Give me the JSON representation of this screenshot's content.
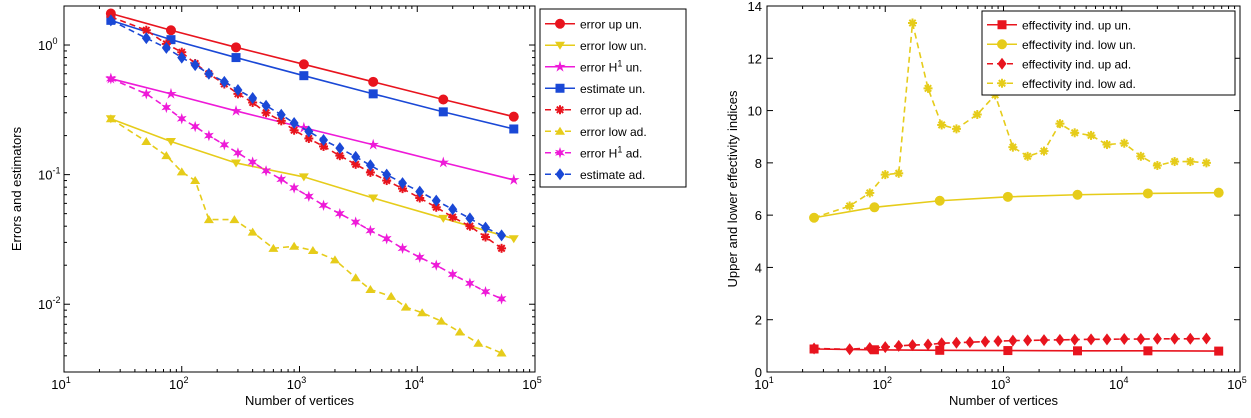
{
  "chart_data": [
    {
      "type": "line",
      "xscale": "log",
      "yscale": "log",
      "xlabel": "Number of vertices",
      "ylabel": "Errors and estimators",
      "xlim": [
        10,
        100000
      ],
      "ylim": [
        0.003,
        2
      ],
      "x_major_ticks": [
        {
          "base": "10",
          "exp": "1",
          "value": 10
        },
        {
          "base": "10",
          "exp": "2",
          "value": 100
        },
        {
          "base": "10",
          "exp": "3",
          "value": 1000
        },
        {
          "base": "10",
          "exp": "4",
          "value": 10000
        },
        {
          "base": "10",
          "exp": "5",
          "value": 100000
        }
      ],
      "y_major_ticks": [
        {
          "base": "10",
          "exp": "0",
          "value": 1
        },
        {
          "base": "10",
          "exp": "-1",
          "value": 0.1
        },
        {
          "base": "10",
          "exp": "-2",
          "value": 0.01
        }
      ],
      "legend_position": "top-right",
      "series": [
        {
          "name": "error up un.",
          "color": "#e8141e",
          "marker": "circle",
          "dash": "solid",
          "points": [
            [
              25,
              1.75
            ],
            [
              81,
              1.3
            ],
            [
              289,
              0.96
            ],
            [
              1089,
              0.71
            ],
            [
              4225,
              0.52
            ],
            [
              16641,
              0.38
            ],
            [
              66049,
              0.28
            ]
          ]
        },
        {
          "name": "error low un.",
          "color": "#e6cc1a",
          "marker": "triangle-down",
          "dash": "solid",
          "points": [
            [
              25,
              0.27
            ],
            [
              81,
              0.18
            ],
            [
              289,
              0.123
            ],
            [
              1089,
              0.096
            ],
            [
              4225,
              0.066
            ],
            [
              16641,
              0.046
            ],
            [
              66049,
              0.032
            ]
          ]
        },
        {
          "name": "error H",
          "name_sup": "1",
          "name_suffix": " un.",
          "color": "#ee1ad8",
          "marker": "star",
          "dash": "solid",
          "points": [
            [
              25,
              0.55
            ],
            [
              81,
              0.42
            ],
            [
              289,
              0.31
            ],
            [
              1089,
              0.23
            ],
            [
              4225,
              0.17
            ],
            [
              16641,
              0.124
            ],
            [
              66049,
              0.091
            ]
          ]
        },
        {
          "name": "estimate un.",
          "color": "#1a48d6",
          "marker": "square",
          "dash": "solid",
          "points": [
            [
              25,
              1.55
            ],
            [
              81,
              1.1
            ],
            [
              289,
              0.8
            ],
            [
              1089,
              0.58
            ],
            [
              4225,
              0.42
            ],
            [
              16641,
              0.305
            ],
            [
              66049,
              0.225
            ]
          ]
        },
        {
          "name": "error up ad.",
          "color": "#e8141e",
          "marker": "asterisk",
          "dash": "dashed",
          "points": [
            [
              25,
              1.65
            ],
            [
              50,
              1.3
            ],
            [
              74,
              1.02
            ],
            [
              100,
              0.88
            ],
            [
              130,
              0.72
            ],
            [
              170,
              0.6
            ],
            [
              230,
              0.5
            ],
            [
              300,
              0.42
            ],
            [
              400,
              0.36
            ],
            [
              520,
              0.3
            ],
            [
              700,
              0.26
            ],
            [
              900,
              0.22
            ],
            [
              1200,
              0.19
            ],
            [
              1600,
              0.165
            ],
            [
              2200,
              0.14
            ],
            [
              3000,
              0.12
            ],
            [
              4000,
              0.104
            ],
            [
              5500,
              0.09
            ],
            [
              7500,
              0.078
            ],
            [
              10500,
              0.066
            ],
            [
              14500,
              0.056
            ],
            [
              20000,
              0.047
            ],
            [
              28000,
              0.04
            ],
            [
              38000,
              0.033
            ],
            [
              52000,
              0.027
            ]
          ]
        },
        {
          "name": "error low ad.",
          "color": "#e6cc1a",
          "marker": "triangle-up",
          "dash": "dashed",
          "points": [
            [
              25,
              0.27
            ],
            [
              50,
              0.18
            ],
            [
              74,
              0.14
            ],
            [
              100,
              0.105
            ],
            [
              130,
              0.09
            ],
            [
              170,
              0.045
            ],
            [
              280,
              0.045
            ],
            [
              400,
              0.036
            ],
            [
              600,
              0.027
            ],
            [
              900,
              0.028
            ],
            [
              1300,
              0.026
            ],
            [
              2000,
              0.022
            ],
            [
              3000,
              0.016
            ],
            [
              4000,
              0.013
            ],
            [
              6000,
              0.0115
            ],
            [
              8000,
              0.0095
            ],
            [
              11000,
              0.0086
            ],
            [
              16000,
              0.0074
            ],
            [
              23000,
              0.0061
            ],
            [
              33000,
              0.005
            ],
            [
              52000,
              0.0042
            ]
          ]
        },
        {
          "name": "error H",
          "name_sup": "1",
          "name_suffix": " ad.",
          "color": "#ee1ad8",
          "marker": "star6",
          "dash": "dashed",
          "points": [
            [
              25,
              0.55
            ],
            [
              50,
              0.42
            ],
            [
              74,
              0.33
            ],
            [
              100,
              0.27
            ],
            [
              130,
              0.235
            ],
            [
              170,
              0.2
            ],
            [
              230,
              0.17
            ],
            [
              300,
              0.147
            ],
            [
              400,
              0.125
            ],
            [
              520,
              0.107
            ],
            [
              700,
              0.092
            ],
            [
              900,
              0.079
            ],
            [
              1200,
              0.068
            ],
            [
              1600,
              0.058
            ],
            [
              2200,
              0.05
            ],
            [
              3000,
              0.043
            ],
            [
              4000,
              0.037
            ],
            [
              5500,
              0.032
            ],
            [
              7500,
              0.027
            ],
            [
              10500,
              0.023
            ],
            [
              14500,
              0.02
            ],
            [
              20000,
              0.017
            ],
            [
              28000,
              0.0145
            ],
            [
              38000,
              0.0125
            ],
            [
              52000,
              0.011
            ]
          ]
        },
        {
          "name": "estimate ad.",
          "color": "#1a48d6",
          "marker": "diamond",
          "dash": "dashed",
          "points": [
            [
              25,
              1.55
            ],
            [
              50,
              1.13
            ],
            [
              74,
              0.95
            ],
            [
              100,
              0.8
            ],
            [
              130,
              0.7
            ],
            [
              170,
              0.6
            ],
            [
              230,
              0.52
            ],
            [
              300,
              0.45
            ],
            [
              400,
              0.39
            ],
            [
              520,
              0.34
            ],
            [
              700,
              0.29
            ],
            [
              900,
              0.25
            ],
            [
              1200,
              0.215
            ],
            [
              1600,
              0.185
            ],
            [
              2200,
              0.16
            ],
            [
              3000,
              0.137
            ],
            [
              4000,
              0.118
            ],
            [
              5500,
              0.1
            ],
            [
              7500,
              0.086
            ],
            [
              10500,
              0.074
            ],
            [
              14500,
              0.063
            ],
            [
              20000,
              0.054
            ],
            [
              28000,
              0.046
            ],
            [
              38000,
              0.039
            ],
            [
              52000,
              0.034
            ]
          ]
        }
      ]
    },
    {
      "type": "line",
      "xscale": "log",
      "yscale": "linear",
      "xlabel": "Number of vertices",
      "ylabel": "Upper and lower effectivity indices",
      "xlim": [
        10,
        100000
      ],
      "ylim": [
        0,
        14
      ],
      "x_major_ticks": [
        {
          "base": "10",
          "exp": "1",
          "value": 10
        },
        {
          "base": "10",
          "exp": "2",
          "value": 100
        },
        {
          "base": "10",
          "exp": "3",
          "value": 1000
        },
        {
          "base": "10",
          "exp": "4",
          "value": 10000
        },
        {
          "base": "10",
          "exp": "5",
          "value": 100000
        }
      ],
      "y_major_ticks": [
        {
          "label": "0",
          "value": 0
        },
        {
          "label": "2",
          "value": 2
        },
        {
          "label": "4",
          "value": 4
        },
        {
          "label": "6",
          "value": 6
        },
        {
          "label": "8",
          "value": 8
        },
        {
          "label": "10",
          "value": 10
        },
        {
          "label": "12",
          "value": 12
        },
        {
          "label": "14",
          "value": 14
        }
      ],
      "legend_position": "top-right",
      "series": [
        {
          "name": "effectivity ind. up un.",
          "color": "#e8141e",
          "marker": "square",
          "dash": "solid",
          "points": [
            [
              25,
              0.88
            ],
            [
              81,
              0.85
            ],
            [
              289,
              0.83
            ],
            [
              1089,
              0.82
            ],
            [
              4225,
              0.81
            ],
            [
              16641,
              0.81
            ],
            [
              66049,
              0.8
            ]
          ]
        },
        {
          "name": "effectivity ind. low un.",
          "color": "#e6cc1a",
          "marker": "circle",
          "dash": "solid",
          "points": [
            [
              25,
              5.9
            ],
            [
              81,
              6.3
            ],
            [
              289,
              6.55
            ],
            [
              1089,
              6.7
            ],
            [
              4225,
              6.78
            ],
            [
              16641,
              6.83
            ],
            [
              66049,
              6.86
            ]
          ]
        },
        {
          "name": "effectivity ind. up ad.",
          "color": "#e8141e",
          "marker": "diamond",
          "dash": "dashed",
          "points": [
            [
              25,
              0.9
            ],
            [
              50,
              0.87
            ],
            [
              74,
              0.92
            ],
            [
              100,
              0.95
            ],
            [
              130,
              1.0
            ],
            [
              170,
              1.03
            ],
            [
              230,
              1.05
            ],
            [
              300,
              1.1
            ],
            [
              400,
              1.12
            ],
            [
              520,
              1.14
            ],
            [
              700,
              1.16
            ],
            [
              900,
              1.18
            ],
            [
              1200,
              1.2
            ],
            [
              1600,
              1.21
            ],
            [
              2200,
              1.22
            ],
            [
              3000,
              1.23
            ],
            [
              4000,
              1.24
            ],
            [
              5500,
              1.25
            ],
            [
              7500,
              1.25
            ],
            [
              10500,
              1.26
            ],
            [
              14500,
              1.26
            ],
            [
              20000,
              1.27
            ],
            [
              28000,
              1.27
            ],
            [
              38000,
              1.27
            ],
            [
              52000,
              1.28
            ]
          ]
        },
        {
          "name": "effectivity ind. low ad.",
          "color": "#e6cc1a",
          "marker": "asterisk",
          "dash": "dashed",
          "points": [
            [
              25,
              5.9
            ],
            [
              50,
              6.35
            ],
            [
              74,
              6.85
            ],
            [
              100,
              7.55
            ],
            [
              130,
              7.6
            ],
            [
              170,
              13.35
            ],
            [
              230,
              10.85
            ],
            [
              300,
              9.45
            ],
            [
              400,
              9.3
            ],
            [
              600,
              9.85
            ],
            [
              850,
              10.6
            ],
            [
              1200,
              8.6
            ],
            [
              1600,
              8.25
            ],
            [
              2200,
              8.45
            ],
            [
              3000,
              9.5
            ],
            [
              4000,
              9.15
            ],
            [
              5500,
              9.05
            ],
            [
              7500,
              8.7
            ],
            [
              10500,
              8.75
            ],
            [
              14500,
              8.25
            ],
            [
              20000,
              7.9
            ],
            [
              28000,
              8.05
            ],
            [
              38000,
              8.05
            ],
            [
              52000,
              8.0
            ]
          ]
        }
      ]
    }
  ]
}
